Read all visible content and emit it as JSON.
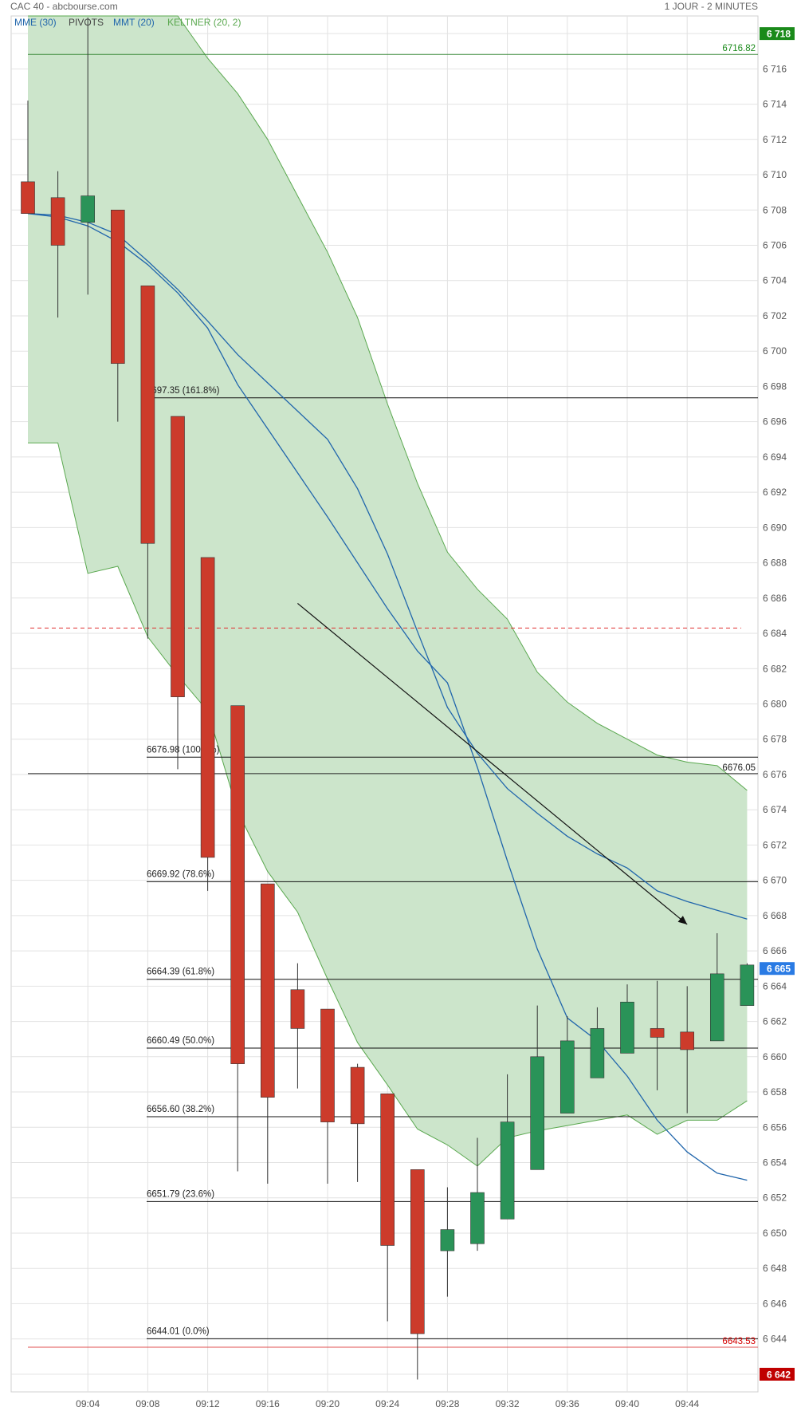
{
  "header": {
    "title": "CAC 40 - abcbourse.com",
    "period": "1 JOUR - 2 MINUTES"
  },
  "legend": [
    {
      "label": "MME (30)",
      "color": "#2166ac"
    },
    {
      "label": "PIVOTS",
      "color": "#444444"
    },
    {
      "label": "MMT (20)",
      "color": "#2166ac"
    },
    {
      "label": "KELTNER (20, 2)",
      "color": "#5aa84f"
    }
  ],
  "colors": {
    "bull": "#2a9358",
    "bull_dark": "#1f6e40",
    "bear": "#ff4040",
    "bear_dark": "#cc3b2b",
    "keltner_fill": "#cce5cb",
    "keltner_line": "#5aa84f",
    "ma": "#2166ac",
    "grid": "#e2e2e2",
    "axis_text": "#555555",
    "pivot": "#d40000"
  },
  "chart_data": {
    "type": "candlestick",
    "title": "CAC 40 - abcbourse.com",
    "subtitle": "1 JOUR - 2 MINUTES",
    "ylim": [
      6641,
      6719
    ],
    "y_ticks": [
      6642,
      6644,
      6646,
      6648,
      6650,
      6652,
      6654,
      6656,
      6658,
      6660,
      6662,
      6664,
      6666,
      6668,
      6670,
      6672,
      6674,
      6676,
      6678,
      6680,
      6682,
      6684,
      6686,
      6688,
      6690,
      6692,
      6694,
      6696,
      6698,
      6700,
      6702,
      6704,
      6706,
      6708,
      6710,
      6712,
      6714,
      6716,
      6718
    ],
    "x_ticks": [
      "09:04",
      "09:08",
      "09:12",
      "09:16",
      "09:20",
      "09:24",
      "09:28",
      "09:32",
      "09:36",
      "09:40",
      "09:44"
    ],
    "candles": [
      {
        "time": "09:00",
        "open": 6709.6,
        "high": 6714.2,
        "low": 6707.8,
        "close": 6707.8
      },
      {
        "time": "09:02",
        "open": 6708.7,
        "high": 6710.2,
        "low": 6701.9,
        "close": 6706.0
      },
      {
        "time": "09:04",
        "open": 6707.3,
        "high": 6719.3,
        "low": 6703.2,
        "close": 6708.8
      },
      {
        "time": "09:06",
        "open": 6708.0,
        "high": 6708.0,
        "low": 6696.0,
        "close": 6699.3
      },
      {
        "time": "09:08",
        "open": 6703.7,
        "high": 6703.7,
        "low": 6683.7,
        "close": 6689.1
      },
      {
        "time": "09:10",
        "open": 6696.3,
        "high": 6696.3,
        "low": 6676.3,
        "close": 6680.4
      },
      {
        "time": "09:12",
        "open": 6688.3,
        "high": 6688.3,
        "low": 6669.4,
        "close": 6671.3
      },
      {
        "time": "09:14",
        "open": 6679.9,
        "high": 6679.9,
        "low": 6653.5,
        "close": 6659.6
      },
      {
        "time": "09:16",
        "open": 6669.8,
        "high": 6669.8,
        "low": 6652.8,
        "close": 6657.7
      },
      {
        "time": "09:18",
        "open": 6663.8,
        "high": 6665.3,
        "low": 6658.2,
        "close": 6661.6
      },
      {
        "time": "09:20",
        "open": 6662.7,
        "high": 6662.7,
        "low": 6652.8,
        "close": 6656.3
      },
      {
        "time": "09:22",
        "open": 6659.4,
        "high": 6659.6,
        "low": 6652.9,
        "close": 6656.2
      },
      {
        "time": "09:24",
        "open": 6657.9,
        "high": 6657.9,
        "low": 6645.0,
        "close": 6649.3
      },
      {
        "time": "09:26",
        "open": 6653.6,
        "high": 6653.6,
        "low": 6641.7,
        "close": 6644.3
      },
      {
        "time": "09:28",
        "open": 6649.0,
        "high": 6652.6,
        "low": 6646.4,
        "close": 6650.2
      },
      {
        "time": "09:30",
        "open": 6649.4,
        "high": 6655.4,
        "low": 6649.0,
        "close": 6652.3
      },
      {
        "time": "09:32",
        "open": 6650.8,
        "high": 6659.0,
        "low": 6650.8,
        "close": 6656.3
      },
      {
        "time": "09:34",
        "open": 6653.6,
        "high": 6662.9,
        "low": 6653.6,
        "close": 6660.0
      },
      {
        "time": "09:36",
        "open": 6656.8,
        "high": 6662.3,
        "low": 6656.8,
        "close": 6660.9
      },
      {
        "time": "09:38",
        "open": 6658.8,
        "high": 6662.8,
        "low": 6658.8,
        "close": 6661.6
      },
      {
        "time": "09:40",
        "open": 6660.2,
        "high": 6664.1,
        "low": 6660.2,
        "close": 6663.1
      },
      {
        "time": "09:42",
        "open": 6661.6,
        "high": 6664.3,
        "low": 6658.1,
        "close": 6661.1
      },
      {
        "time": "09:44",
        "open": 6661.4,
        "high": 6664.0,
        "low": 6656.8,
        "close": 6660.4
      },
      {
        "time": "09:46",
        "open": 6660.9,
        "high": 6667.0,
        "low": 6660.9,
        "close": 6664.7
      },
      {
        "time": "09:48",
        "open": 6662.9,
        "high": 6665.3,
        "low": 6662.9,
        "close": 6665.2
      }
    ],
    "mme30": [
      6707.8,
      6707.7,
      6707.3,
      6706.6,
      6705.1,
      6703.5,
      6701.7,
      6699.8,
      6698.2,
      6696.6,
      6695.0,
      6692.2,
      6688.5,
      6684.1,
      6679.8,
      6677.2,
      6675.2,
      6673.8,
      6672.5,
      6671.5,
      6670.7,
      6669.4,
      6668.8,
      6668.3,
      6667.8
    ],
    "mmt20": [
      6707.8,
      6707.6,
      6707.1,
      6706.2,
      6704.9,
      6703.3,
      6701.3,
      6698.1,
      6695.6,
      6693.1,
      6690.6,
      6688.0,
      6685.4,
      6683.0,
      6681.2,
      6676.4,
      6671.1,
      6666.1,
      6662.2,
      6660.9,
      6658.9,
      6656.4,
      6654.6,
      6653.4,
      6653.0
    ],
    "keltner_upper": [
      6727.0,
      6727.0,
      6727.0,
      6727.0,
      6727.0,
      6727.0,
      6716.6,
      6714.6,
      6712.0,
      6708.8,
      6705.6,
      6701.9,
      6697.0,
      6692.5,
      6688.6,
      6686.5,
      6684.8,
      6681.8,
      6680.1,
      6678.9,
      6678.0,
      6677.1,
      6676.7,
      6676.5,
      6675.1
    ],
    "keltner_lower": [
      6694.8,
      6694.8,
      6687.4,
      6687.8,
      6683.8,
      6681.6,
      6679.6,
      6673.9,
      6670.5,
      6668.2,
      6664.4,
      6660.8,
      6658.4,
      6655.9,
      6655.0,
      6653.8,
      6655.4,
      6655.8,
      6656.1,
      6656.4,
      6656.7,
      6655.6,
      6656.4,
      6656.4,
      6657.5
    ],
    "resistance_level": 6676.05,
    "pivot_level": 6643.53,
    "high_marker": 6716.82,
    "dashed_level": 6684.3,
    "fibonacci": [
      {
        "value": 6697.35,
        "label": "6697.35",
        "pct": "(161.8%)"
      },
      {
        "value": 6676.98,
        "label": "6676.98",
        "pct": "(100.0%)"
      },
      {
        "value": 6669.92,
        "label": "6669.92",
        "pct": "(78.6%)"
      },
      {
        "value": 6664.39,
        "label": "6664.39",
        "pct": "(61.8%)"
      },
      {
        "value": 6660.49,
        "label": "6660.49",
        "pct": "(50.0%)"
      },
      {
        "value": 6656.6,
        "label": "6656.60",
        "pct": "(38.2%)"
      },
      {
        "value": 6651.79,
        "label": "6651.79",
        "pct": "(23.6%)"
      },
      {
        "value": 6644.01,
        "label": "6644.01",
        "pct": "(0.0%)"
      }
    ],
    "trend_arrow": {
      "from": {
        "time_index": 9.0,
        "value": 6685.7
      },
      "to": {
        "time_index": 22.0,
        "value": 6667.5
      }
    },
    "price_tags": [
      {
        "value": 6718,
        "label": "6 718",
        "color": "#1a8a1a"
      },
      {
        "value": 6665,
        "label": "6 665",
        "color": "#2a7be4"
      },
      {
        "value": 6642,
        "label": "6 642",
        "color": "#c00000"
      }
    ],
    "level_labels": [
      {
        "value": 6716.82,
        "label": "6716.82",
        "color": "#1a8a1a"
      },
      {
        "value": 6676.05,
        "label": "6676.05",
        "color": "#222222"
      },
      {
        "value": 6643.53,
        "label": "6643.53",
        "color": "#d40000"
      }
    ]
  }
}
